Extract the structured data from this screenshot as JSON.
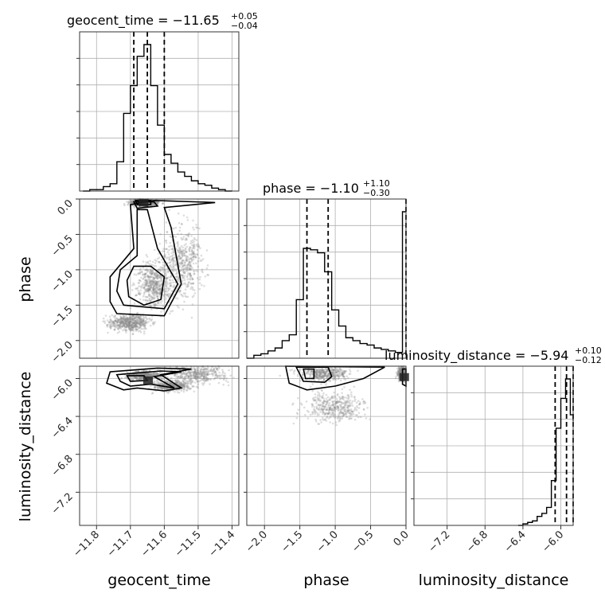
{
  "chart_data": {
    "type": "corner",
    "parameters": [
      {
        "name": "geocent_time",
        "label": "geocent_time",
        "range": [
          -11.85,
          -11.38
        ],
        "ticks": [
          -11.8,
          -11.7,
          -11.6,
          -11.5,
          -11.4
        ],
        "tick_labels": [
          "−11.8",
          "−11.7",
          "−11.6",
          "−11.5",
          "−11.4"
        ],
        "title_main": "geocent_time = −11.65",
        "title_plus": "+0.05",
        "title_minus": "−0.04",
        "quantiles": [
          -11.69,
          -11.65,
          -11.6
        ],
        "hist_bins": [
          -11.84,
          -11.82,
          -11.8,
          -11.78,
          -11.76,
          -11.74,
          -11.72,
          -11.7,
          -11.68,
          -11.66,
          -11.64,
          -11.62,
          -11.6,
          -11.58,
          -11.56,
          -11.54,
          -11.52,
          -11.5,
          -11.48,
          -11.46,
          -11.44,
          -11.42,
          -11.4
        ],
        "hist_counts": [
          0.0,
          0.01,
          0.01,
          0.03,
          0.05,
          0.2,
          0.53,
          0.72,
          0.92,
          1.0,
          0.72,
          0.45,
          0.25,
          0.19,
          0.13,
          0.1,
          0.07,
          0.05,
          0.04,
          0.02,
          0.01,
          0.0
        ]
      },
      {
        "name": "phase",
        "label": "phase",
        "range": [
          -2.25,
          0.0
        ],
        "ticks": [
          -2.0,
          -1.5,
          -1.0,
          -0.5,
          0.0
        ],
        "tick_labels": [
          "−2.0",
          "−1.5",
          "−1.0",
          "−0.5",
          "0.0"
        ],
        "title_main": "phase = −1.10",
        "title_plus": "+1.10",
        "title_minus": "−0.30",
        "quantiles": [
          -1.4,
          -1.1,
          0.0
        ],
        "hist_bins": [
          -2.25,
          -2.15,
          -2.05,
          -1.95,
          -1.85,
          -1.75,
          -1.65,
          -1.55,
          -1.45,
          -1.35,
          -1.25,
          -1.15,
          -1.05,
          -0.95,
          -0.85,
          -0.75,
          -0.65,
          -0.55,
          -0.45,
          -0.35,
          -0.25,
          -0.15,
          -0.05,
          0.0
        ],
        "hist_counts": [
          0.0,
          0.02,
          0.03,
          0.05,
          0.07,
          0.12,
          0.16,
          0.4,
          0.75,
          0.74,
          0.72,
          0.59,
          0.33,
          0.22,
          0.14,
          0.12,
          0.1,
          0.09,
          0.07,
          0.06,
          0.05,
          0.04,
          1.0
        ]
      },
      {
        "name": "luminosity_distance",
        "label": "luminosity_distance",
        "range": [
          -7.55,
          -5.87
        ],
        "ticks": [
          -7.2,
          -6.8,
          -6.4,
          -6.0
        ],
        "tick_labels": [
          "−7.2",
          "−6.8",
          "−6.4",
          "−6.0"
        ],
        "title_main": "luminosity_distance = −5.94",
        "title_plus": "+0.10",
        "title_minus": "−0.12",
        "quantiles": [
          -6.06,
          -5.94,
          -5.84
        ],
        "hist_bins": [
          -6.45,
          -6.4,
          -6.35,
          -6.3,
          -6.25,
          -6.2,
          -6.15,
          -6.1,
          -6.05,
          -6.0,
          -5.95,
          -5.9,
          -5.85,
          -5.8,
          -5.75
        ],
        "hist_counts": [
          0.0,
          0.01,
          0.02,
          0.03,
          0.06,
          0.08,
          0.12,
          0.3,
          0.65,
          0.85,
          0.98,
          0.74,
          0.7,
          0.7
        ]
      }
    ],
    "pairs": [
      {
        "x": "geocent_time",
        "y": "phase",
        "contours": [
          [
            [
              -11.705,
              -1.38
            ],
            [
              -11.66,
              -1.5
            ],
            [
              -11.61,
              -1.42
            ],
            [
              -11.6,
              -1.1
            ],
            [
              -11.64,
              -0.95
            ],
            [
              -11.69,
              -0.95
            ],
            [
              -11.71,
              -1.15
            ]
          ],
          [
            [
              -11.72,
              -1.5
            ],
            [
              -11.6,
              -1.55
            ],
            [
              -11.56,
              -1.2
            ],
            [
              -11.62,
              -0.7
            ],
            [
              -11.65,
              -0.15
            ],
            [
              -11.68,
              -0.15
            ],
            [
              -11.68,
              -0.8
            ],
            [
              -11.73,
              -1.0
            ],
            [
              -11.74,
              -1.3
            ]
          ],
          [
            [
              -11.74,
              -1.62
            ],
            [
              -11.6,
              -1.65
            ],
            [
              -11.55,
              -1.2
            ],
            [
              -11.58,
              -0.4
            ],
            [
              -11.6,
              -0.12
            ],
            [
              -11.45,
              -0.05
            ],
            [
              -11.63,
              -0.02
            ],
            [
              -11.7,
              -0.08
            ],
            [
              -11.69,
              -0.7
            ],
            [
              -11.76,
              -1.1
            ],
            [
              -11.76,
              -1.45
            ]
          ],
          [
            [
              -11.69,
              -0.04
            ],
            [
              -11.63,
              -0.04
            ],
            [
              -11.62,
              -0.1
            ],
            [
              -11.68,
              -0.13
            ]
          ],
          [
            [
              -11.685,
              -0.02
            ],
            [
              -11.64,
              -0.02
            ],
            [
              -11.64,
              -0.08
            ],
            [
              -11.68,
              -0.08
            ]
          ]
        ]
      },
      {
        "x": "geocent_time",
        "y": "luminosity_distance",
        "contours": [
          [
            [
              -11.71,
              -5.97
            ],
            [
              -11.66,
              -5.97
            ],
            [
              -11.65,
              -6.02
            ],
            [
              -11.7,
              -6.03
            ]
          ],
          [
            [
              -11.74,
              -5.96
            ],
            [
              -11.61,
              -5.92
            ],
            [
              -11.55,
              -5.93
            ],
            [
              -11.63,
              -5.98
            ],
            [
              -11.57,
              -6.1
            ],
            [
              -11.64,
              -6.06
            ],
            [
              -11.7,
              -6.08
            ],
            [
              -11.73,
              -6.03
            ]
          ],
          [
            [
              -11.76,
              -5.93
            ],
            [
              -11.62,
              -5.89
            ],
            [
              -11.52,
              -5.9
            ],
            [
              -11.61,
              -5.96
            ],
            [
              -11.55,
              -6.1
            ],
            [
              -11.6,
              -6.13
            ],
            [
              -11.68,
              -6.1
            ],
            [
              -11.72,
              -6.12
            ],
            [
              -11.77,
              -6.05
            ]
          ]
        ]
      },
      {
        "x": "phase",
        "y": "luminosity_distance",
        "contours": [
          [
            [
              -1.45,
              -5.9
            ],
            [
              -1.3,
              -5.9
            ],
            [
              -1.3,
              -6.0
            ],
            [
              -1.42,
              -6.0
            ]
          ],
          [
            [
              -1.55,
              -5.88
            ],
            [
              -1.1,
              -5.88
            ],
            [
              -1.05,
              -5.98
            ],
            [
              -1.15,
              -6.04
            ],
            [
              -1.45,
              -6.03
            ]
          ],
          [
            [
              -1.7,
              -5.87
            ],
            [
              -0.3,
              -5.88
            ],
            [
              -0.6,
              -6.0
            ],
            [
              -1.0,
              -6.08
            ],
            [
              -1.4,
              -6.12
            ],
            [
              -1.65,
              -6.05
            ]
          ],
          [
            [
              -0.05,
              -5.9
            ],
            [
              0.0,
              -5.9
            ],
            [
              0.0,
              -6.08
            ],
            [
              -0.05,
              -6.06
            ]
          ]
        ]
      }
    ],
    "grid": true
  }
}
